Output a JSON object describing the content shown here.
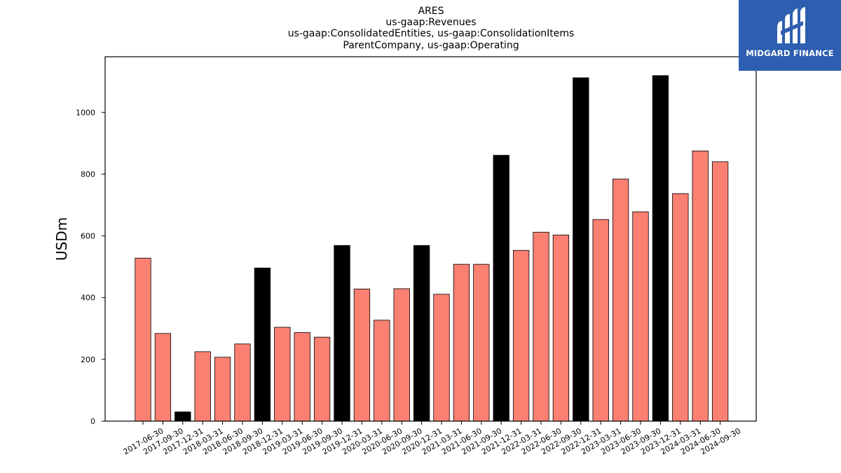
{
  "chart_data": {
    "type": "bar",
    "title_lines": [
      "ARES",
      "us-gaap:Revenues",
      "us-gaap:ConsolidatedEntities, us-gaap:ConsolidationItems",
      "ParentCompany, us-gaap:Operating"
    ],
    "ylabel": "USDm",
    "xlabel": "",
    "ylim": [
      0,
      1180
    ],
    "yticks": [
      0,
      200,
      400,
      600,
      800,
      1000
    ],
    "categories": [
      "2017-06-30",
      "2017-09-30",
      "2017-12-31",
      "2018-03-31",
      "2018-06-30",
      "2018-09-30",
      "2018-12-31",
      "2019-03-31",
      "2019-06-30",
      "2019-09-30",
      "2019-12-31",
      "2020-03-31",
      "2020-06-30",
      "2020-09-30",
      "2020-12-31",
      "2021-03-31",
      "2021-06-30",
      "2021-09-30",
      "2021-12-31",
      "2022-03-31",
      "2022-06-30",
      "2022-09-30",
      "2022-12-31",
      "2023-03-31",
      "2023-06-30",
      "2023-09-30",
      "2023-12-31",
      "2024-03-31",
      "2024-06-30",
      "2024-09-30"
    ],
    "values": [
      528,
      284,
      30,
      225,
      207,
      250,
      496,
      304,
      287,
      272,
      569,
      428,
      327,
      429,
      569,
      411,
      508,
      508,
      861,
      553,
      612,
      603,
      1112,
      653,
      784,
      678,
      1119,
      737,
      875,
      840
    ],
    "colors": {
      "quarter": "#fa8072",
      "year_end": "#000000",
      "edge": "#000000"
    },
    "year_end_suffix": "12-31",
    "grid": false,
    "legend": "none"
  },
  "logo": {
    "text": "MIDGARD FINANCE",
    "background": "#2d5eb0"
  }
}
